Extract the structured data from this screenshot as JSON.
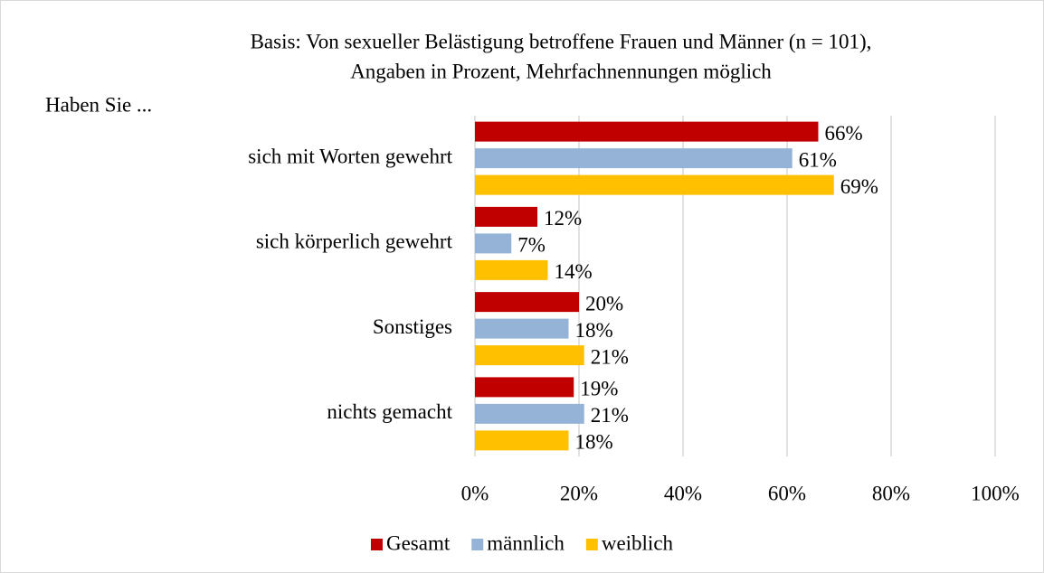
{
  "chart_data": {
    "type": "hbar",
    "title": [
      "Basis: Von sexueller Belästigung betroffene Frauen und Männer (n = 101),",
      "Angaben in Prozent, Mehrfachnennungen möglich"
    ],
    "ylabel": "Haben Sie ...",
    "categories": [
      "sich mit Worten gewehrt",
      "sich körperlich gewehrt",
      "Sonstiges",
      "nichts gemacht"
    ],
    "series": [
      {
        "name": "Gesamt",
        "color": "#c00000",
        "values": [
          66,
          12,
          20,
          19
        ],
        "value_labels": [
          "66%",
          "12%",
          "20%",
          "19%"
        ]
      },
      {
        "name": "männlich",
        "color": "#95b3d7",
        "values": [
          61,
          7,
          18,
          21
        ],
        "value_labels": [
          "61%",
          "7%",
          "18%",
          "21%"
        ]
      },
      {
        "name": "weiblich",
        "color": "#ffc000",
        "values": [
          69,
          14,
          21,
          18
        ],
        "value_labels": [
          "69%",
          "14%",
          "21%",
          "18%"
        ]
      }
    ],
    "xlim": [
      0,
      100
    ],
    "xticks": [
      {
        "value": 0,
        "label": "0%"
      },
      {
        "value": 20,
        "label": "20%"
      },
      {
        "value": 40,
        "label": "40%"
      },
      {
        "value": 60,
        "label": "60%"
      },
      {
        "value": 80,
        "label": "80%"
      },
      {
        "value": 100,
        "label": "100%"
      }
    ],
    "grid": true,
    "legend": "bottom"
  }
}
